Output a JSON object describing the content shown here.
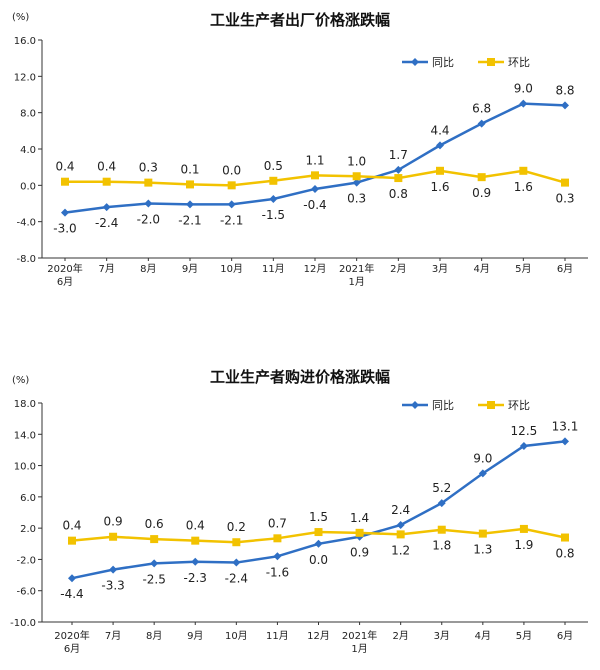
{
  "colors": {
    "yoy": "#2f6fc4",
    "mom": "#f2c200",
    "axis": "#333333",
    "text": "#222222"
  },
  "chart_data": [
    {
      "type": "line",
      "title": "工业生产者出厂价格涨跌幅",
      "unit": "(%)",
      "ylim": [
        -8.0,
        16.0
      ],
      "yticks": [
        "16.0",
        "12.0",
        "8.0",
        "4.0",
        "0.0",
        "-4.0",
        "-8.0"
      ],
      "categories": [
        "2020年",
        "7月",
        "8月",
        "9月",
        "10月",
        "11月",
        "12月",
        "2021年",
        "2月",
        "3月",
        "4月",
        "5月",
        "6月"
      ],
      "categories_line2": [
        "6月",
        "",
        "",
        "",
        "",
        "",
        "",
        "1月",
        "",
        "",
        "",
        "",
        ""
      ],
      "grid": false,
      "legend_position": "top-right",
      "series": [
        {
          "name": "同比",
          "color": "#2f6fc4",
          "marker": "diamond",
          "values": [
            -3.0,
            -2.4,
            -2.0,
            -2.1,
            -2.1,
            -1.5,
            -0.4,
            0.3,
            1.7,
            4.4,
            6.8,
            9.0,
            8.8
          ],
          "labels": [
            "-3.0",
            "-2.4",
            "-2.0",
            "-2.1",
            "-2.1",
            "-1.5",
            "-0.4",
            "0.3",
            "1.7",
            "4.4",
            "6.8",
            "9.0",
            "8.8"
          ],
          "label_pos": [
            "below",
            "below",
            "below",
            "below",
            "below",
            "below",
            "below",
            "below",
            "above",
            "above",
            "above",
            "above",
            "above"
          ]
        },
        {
          "name": "环比",
          "color": "#f2c200",
          "marker": "square",
          "values": [
            0.4,
            0.4,
            0.3,
            0.1,
            0.0,
            0.5,
            1.1,
            1.0,
            0.8,
            1.6,
            0.9,
            1.6,
            0.3
          ],
          "labels": [
            "0.4",
            "0.4",
            "0.3",
            "0.1",
            "0.0",
            "0.5",
            "1.1",
            "1.0",
            "0.8",
            "1.6",
            "0.9",
            "1.6",
            "0.3"
          ],
          "label_pos": [
            "above",
            "above",
            "above",
            "above",
            "above",
            "above",
            "above",
            "above",
            "below",
            "below",
            "below",
            "below",
            "below"
          ]
        }
      ]
    },
    {
      "type": "line",
      "title": "工业生产者购进价格涨跌幅",
      "unit": "(%)",
      "ylim": [
        -10.0,
        18.0
      ],
      "yticks": [
        "18.0",
        "14.0",
        "10.0",
        "6.0",
        "2.0",
        "-2.0",
        "-6.0",
        "-10.0"
      ],
      "categories": [
        "2020年",
        "7月",
        "8月",
        "9月",
        "10月",
        "11月",
        "12月",
        "2021年",
        "2月",
        "3月",
        "4月",
        "5月",
        "6月"
      ],
      "categories_line2": [
        "6月",
        "",
        "",
        "",
        "",
        "",
        "",
        "1月",
        "",
        "",
        "",
        "",
        ""
      ],
      "grid": false,
      "legend_position": "top-right",
      "series": [
        {
          "name": "同比",
          "color": "#2f6fc4",
          "marker": "diamond",
          "values": [
            -4.4,
            -3.3,
            -2.5,
            -2.3,
            -2.4,
            -1.6,
            0.0,
            0.9,
            2.4,
            5.2,
            9.0,
            12.5,
            13.1
          ],
          "labels": [
            "-4.4",
            "-3.3",
            "-2.5",
            "-2.3",
            "-2.4",
            "-1.6",
            "0.0",
            "0.9",
            "2.4",
            "5.2",
            "9.0",
            "12.5",
            "13.1"
          ],
          "label_pos": [
            "below",
            "below",
            "below",
            "below",
            "below",
            "below",
            "below",
            "below",
            "above",
            "above",
            "above",
            "above",
            "above"
          ]
        },
        {
          "name": "环比",
          "color": "#f2c200",
          "marker": "square",
          "values": [
            0.4,
            0.9,
            0.6,
            0.4,
            0.2,
            0.7,
            1.5,
            1.4,
            1.2,
            1.8,
            1.3,
            1.9,
            0.8
          ],
          "labels": [
            "0.4",
            "0.9",
            "0.6",
            "0.4",
            "0.2",
            "0.7",
            "1.5",
            "1.4",
            "1.2",
            "1.8",
            "1.3",
            "1.9",
            "0.8"
          ],
          "label_pos": [
            "above",
            "above",
            "above",
            "above",
            "above",
            "above",
            "above",
            "above",
            "below",
            "below",
            "below",
            "below",
            "below"
          ]
        }
      ]
    }
  ]
}
